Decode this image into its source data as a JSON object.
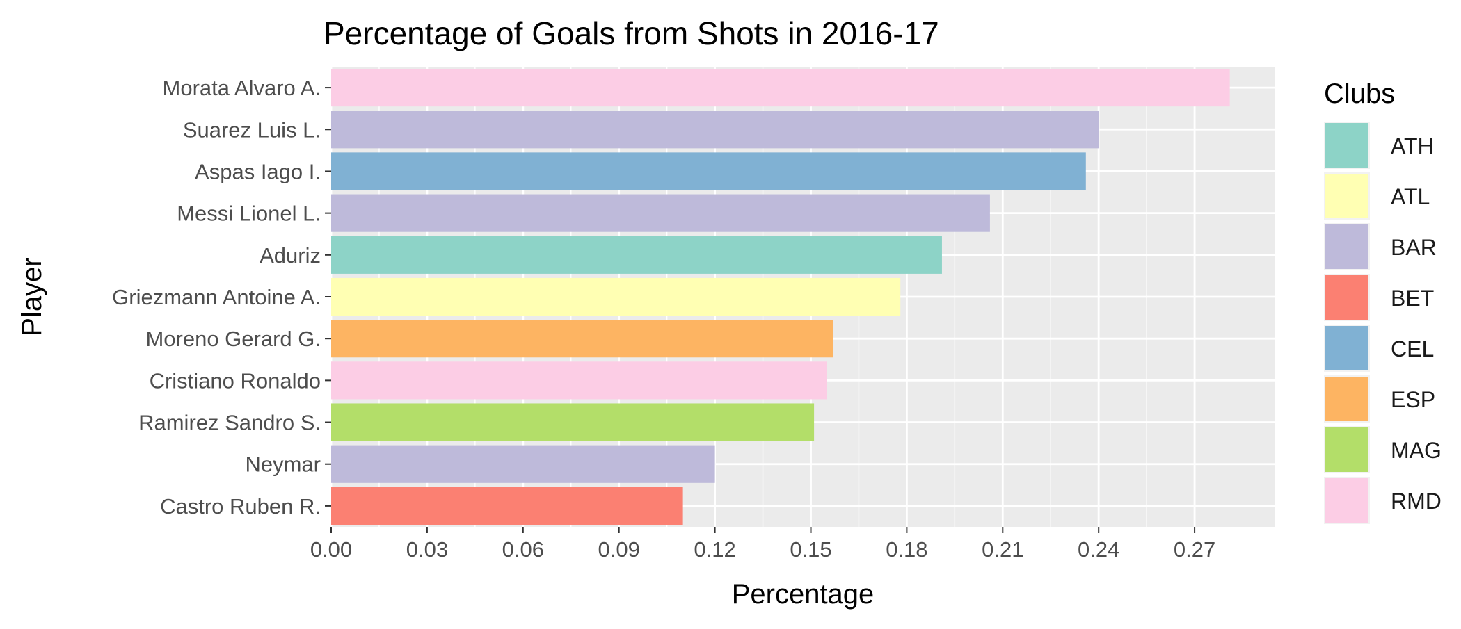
{
  "chart_data": {
    "type": "bar",
    "orientation": "horizontal",
    "title": "Percentage of Goals from Shots in 2016-17",
    "xlabel": "Percentage",
    "ylabel": "Player",
    "xlim": [
      0,
      0.295
    ],
    "xticks": [
      "0.00",
      "0.03",
      "0.06",
      "0.09",
      "0.12",
      "0.15",
      "0.18",
      "0.21",
      "0.24",
      "0.27"
    ],
    "grid": true,
    "legend": {
      "title": "Clubs",
      "placement": "right",
      "entries": [
        {
          "label": "ATH",
          "color": "#8DD3C7"
        },
        {
          "label": "ATL",
          "color": "#FFFFB3"
        },
        {
          "label": "BAR",
          "color": "#BEBADA"
        },
        {
          "label": "BET",
          "color": "#FB8072"
        },
        {
          "label": "CEL",
          "color": "#80B1D3"
        },
        {
          "label": "ESP",
          "color": "#FDB462"
        },
        {
          "label": "MAG",
          "color": "#B3DE69"
        },
        {
          "label": "RMD",
          "color": "#FCCDE5"
        }
      ]
    },
    "bars": [
      {
        "player": "Morata Alvaro A.",
        "club": "RMD",
        "value": 0.281
      },
      {
        "player": "Suarez Luis L.",
        "club": "BAR",
        "value": 0.24
      },
      {
        "player": "Aspas Iago I.",
        "club": "CEL",
        "value": 0.236
      },
      {
        "player": "Messi Lionel L.",
        "club": "BAR",
        "value": 0.206
      },
      {
        "player": "Aduriz",
        "club": "ATH",
        "value": 0.191
      },
      {
        "player": "Griezmann Antoine A.",
        "club": "ATL",
        "value": 0.178
      },
      {
        "player": "Moreno Gerard G.",
        "club": "ESP",
        "value": 0.157
      },
      {
        "player": "Cristiano Ronaldo",
        "club": "RMD",
        "value": 0.155
      },
      {
        "player": "Ramirez Sandro S.",
        "club": "MAG",
        "value": 0.151
      },
      {
        "player": "Neymar",
        "club": "BAR",
        "value": 0.12
      },
      {
        "player": "Castro Ruben R.",
        "club": "BET",
        "value": 0.11
      }
    ]
  }
}
